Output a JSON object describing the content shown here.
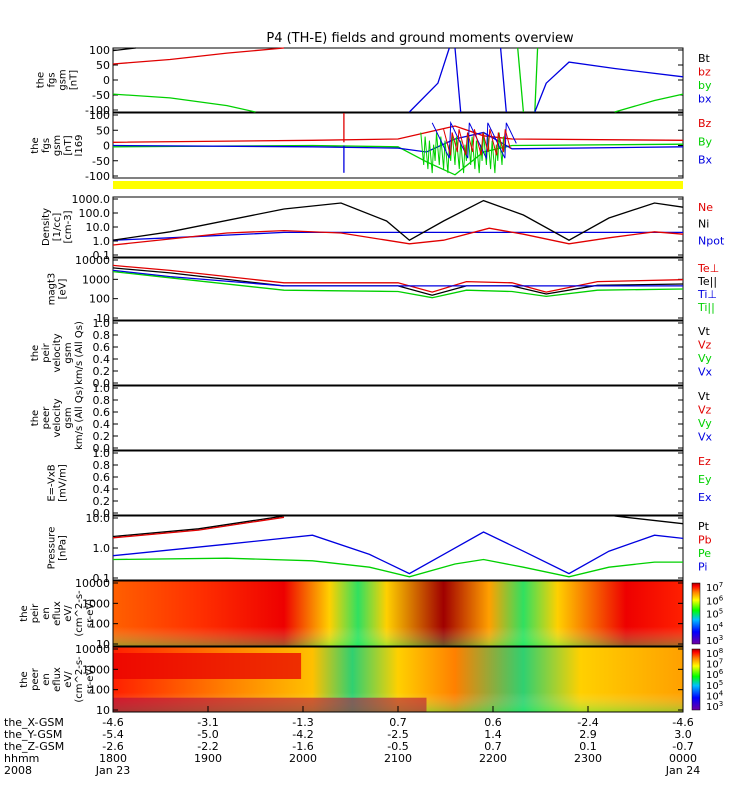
{
  "title": "P4 (TH-E) fields and ground moments overview",
  "colors": {
    "black": "#000000",
    "red": "#e00000",
    "green": "#00d000",
    "blue": "#0000e0",
    "yellow": "#ffff00"
  },
  "panels": [
    {
      "id": "fgs",
      "ylabel": [
        "the",
        "fgs",
        "gsm",
        "[nT]"
      ],
      "ticks": [
        "100",
        "50",
        "0",
        "-50",
        "-100"
      ],
      "legend": [
        {
          "text": "Bt",
          "color": "black"
        },
        {
          "text": "bz",
          "color": "red"
        },
        {
          "text": "by",
          "color": "green"
        },
        {
          "text": "bx",
          "color": "blue"
        }
      ]
    },
    {
      "id": "fgl",
      "ylabel": [
        "the",
        "fgs",
        "gsm",
        "[nT]",
        "l169"
      ],
      "ticks": [
        "100",
        "50",
        "0",
        "-50",
        "-100"
      ],
      "legend": [
        {
          "text": "Bz",
          "color": "red"
        },
        {
          "text": "By",
          "color": "green"
        },
        {
          "text": "Bx",
          "color": "blue"
        }
      ]
    },
    {
      "id": "dens",
      "ylabel": [
        "Density",
        "[1/cc]",
        "[cm-3]"
      ],
      "ticks": [
        "1000.0",
        "100.0",
        "10.0",
        "1.0",
        "0.1"
      ],
      "legend": [
        {
          "text": "Ne",
          "color": "red"
        },
        {
          "text": "Ni",
          "color": "black"
        },
        {
          "text": "Npot",
          "color": "blue"
        }
      ]
    },
    {
      "id": "temp",
      "ylabel": [
        "magt3",
        "[eV]"
      ],
      "ticks": [
        "10000",
        "1000",
        "100",
        "10"
      ],
      "legend": [
        {
          "text": "Te⊥",
          "color": "red"
        },
        {
          "text": "Te||",
          "color": "black"
        },
        {
          "text": "Ti⊥",
          "color": "blue"
        },
        {
          "text": "Ti||",
          "color": "green"
        }
      ]
    },
    {
      "id": "peir",
      "ylabel": [
        "the",
        "peir",
        "velocity",
        "gsm",
        "km/s (All Qs)"
      ],
      "ticks": [
        "1.0",
        "0.8",
        "0.6",
        "0.4",
        "0.2",
        "0.0"
      ],
      "legend": [
        {
          "text": "Vt",
          "color": "black"
        },
        {
          "text": "Vz",
          "color": "red"
        },
        {
          "text": "Vy",
          "color": "green"
        },
        {
          "text": "Vx",
          "color": "blue"
        }
      ]
    },
    {
      "id": "peer",
      "ylabel": [
        "the",
        "peer",
        "velocity",
        "gsm",
        "km/s (All Qs)"
      ],
      "ticks": [
        "1.0",
        "0.8",
        "0.6",
        "0.4",
        "0.2",
        "0.0"
      ],
      "legend": [
        {
          "text": "Vt",
          "color": "black"
        },
        {
          "text": "Vz",
          "color": "red"
        },
        {
          "text": "Vy",
          "color": "green"
        },
        {
          "text": "Vx",
          "color": "blue"
        }
      ]
    },
    {
      "id": "efield",
      "ylabel": [
        "E=-VxB",
        "[mV/m]"
      ],
      "ticks": [
        "1.0",
        "0.8",
        "0.6",
        "0.4",
        "0.2",
        "0.0"
      ],
      "legend": [
        {
          "text": "Ez",
          "color": "red"
        },
        {
          "text": "Ey",
          "color": "green"
        },
        {
          "text": "Ex",
          "color": "blue"
        }
      ]
    },
    {
      "id": "press",
      "ylabel": [
        "Pressure",
        "[nPa]"
      ],
      "ticks": [
        "10.0",
        "1.0",
        "0.1"
      ],
      "legend": [
        {
          "text": "Pt",
          "color": "black"
        },
        {
          "text": "Pb",
          "color": "red"
        },
        {
          "text": "Pe",
          "color": "green"
        },
        {
          "text": "Pi",
          "color": "blue"
        }
      ]
    },
    {
      "id": "ispec",
      "ylabel": [
        "the",
        "peir",
        "en",
        "eflux",
        "eV/",
        "(cm^2-s-",
        "sr-eV)"
      ],
      "ticks": [
        "10000",
        "1000",
        "100",
        "10"
      ],
      "cbar": [
        "10^7",
        "10^6",
        "10^5",
        "10^4",
        "10^3"
      ]
    },
    {
      "id": "espec",
      "ylabel": [
        "the",
        "peer",
        "en",
        "eflux",
        "eV/",
        "(cm^2-s-",
        "sr-eV)"
      ],
      "ticks": [
        "10000",
        "1000",
        "100",
        "10"
      ],
      "cbar": [
        "10^8",
        "10^7",
        "10^6",
        "10^5",
        "10^4",
        "10^3"
      ]
    }
  ],
  "bottom_rows": [
    {
      "label": "the_X-GSM",
      "values": [
        "-4.6",
        "-3.1",
        "-1.3",
        "0.7",
        "0.6",
        "-2.4",
        "-4.6"
      ]
    },
    {
      "label": "the_Y-GSM",
      "values": [
        "-5.4",
        "-5.0",
        "-4.2",
        "-2.5",
        "1.4",
        "2.9",
        "3.0"
      ]
    },
    {
      "label": "the_Z-GSM",
      "values": [
        "-2.6",
        "-2.2",
        "-1.6",
        "-0.5",
        "0.7",
        "0.1",
        "-0.7"
      ]
    },
    {
      "label": "hhmm",
      "values": [
        "1800",
        "1900",
        "2000",
        "2100",
        "2200",
        "2300",
        "0000"
      ]
    },
    {
      "label": "2008",
      "values": [
        "Jan 23",
        "",
        "",
        "",
        "",
        "",
        "Jan 24"
      ]
    }
  ],
  "chart_data": [
    {
      "type": "line",
      "ylabel": "the fgs gsm [nT]",
      "ylim": [
        -100,
        100
      ],
      "x": [
        "1800",
        "1900",
        "2000",
        "2100",
        "2200",
        "2300",
        "0000"
      ],
      "series": [
        {
          "name": "bz",
          "values": [
            45,
            75,
            100,
            100,
            100,
            100,
            100
          ]
        },
        {
          "name": "by",
          "values": [
            -40,
            -90,
            -100,
            -50,
            -100,
            -100,
            -45
          ]
        },
        {
          "name": "bx",
          "values": [
            -100,
            -100,
            -100,
            100,
            -100,
            35,
            -20
          ]
        }
      ]
    },
    {
      "type": "line",
      "ylabel": "the fgs gsm [nT] l169",
      "ylim": [
        -100,
        100
      ],
      "x": [
        "1800",
        "1900",
        "2000",
        "2100",
        "2200",
        "2300",
        "0000"
      ],
      "series": [
        {
          "name": "Bz",
          "values": [
            5,
            8,
            15,
            30,
            40,
            15,
            10
          ]
        },
        {
          "name": "By",
          "values": [
            0,
            2,
            5,
            -30,
            -60,
            5,
            0
          ]
        },
        {
          "name": "Bx",
          "values": [
            -2,
            0,
            0,
            -10,
            20,
            0,
            -5
          ]
        }
      ]
    },
    {
      "type": "line",
      "ylabel": "Density [1/cc] [cm-3]",
      "scale": "log",
      "ylim": [
        0.1,
        1000
      ],
      "x": [
        "1800",
        "1900",
        "2000",
        "2100",
        "2200",
        "2300",
        "0000"
      ],
      "series": [
        {
          "name": "Ni",
          "values": [
            0.9,
            15,
            90,
            0.6,
            160,
            0.6,
            60
          ]
        },
        {
          "name": "Ne",
          "values": [
            0.5,
            3,
            2,
            0.4,
            4,
            0.4,
            1.5
          ]
        },
        {
          "name": "Npot",
          "values": [
            0.5,
            2,
            2,
            2,
            2,
            2,
            2
          ]
        }
      ]
    },
    {
      "type": "line",
      "ylabel": "magt3 [eV]",
      "scale": "log",
      "ylim": [
        10,
        10000
      ],
      "x": [
        "1800",
        "1900",
        "2000",
        "2100",
        "2200",
        "2300",
        "0000"
      ],
      "series": [
        {
          "name": "Te⊥",
          "values": [
            4000,
            600,
            500,
            300,
            450,
            350,
            600
          ]
        },
        {
          "name": "Te||",
          "values": [
            3000,
            500,
            350,
            250,
            300,
            250,
            350
          ]
        },
        {
          "name": "Ti⊥",
          "values": [
            2500,
            400,
            350,
            300,
            300,
            300,
            300
          ]
        },
        {
          "name": "Ti||",
          "values": [
            2000,
            300,
            200,
            150,
            200,
            180,
            200
          ]
        }
      ]
    },
    {
      "type": "line",
      "ylabel": "the peir velocity gsm km/s (All Qs)",
      "ylim": [
        0,
        1
      ],
      "series": []
    },
    {
      "type": "line",
      "ylabel": "the peer velocity gsm km/s (All Qs)",
      "ylim": [
        0,
        1
      ],
      "series": []
    },
    {
      "type": "line",
      "ylabel": "E=-VxB [mV/m]",
      "ylim": [
        0,
        1
      ],
      "series": []
    },
    {
      "type": "line",
      "ylabel": "Pressure [nPa]",
      "scale": "log",
      "ylim": [
        0.02,
        40
      ],
      "x": [
        "1800",
        "1900",
        "2000",
        "2100",
        "2200",
        "2300",
        "0000"
      ],
      "series": [
        {
          "name": "Pt",
          "values": [
            4,
            12,
            40,
            40,
            40,
            40,
            20
          ]
        },
        {
          "name": "Pb",
          "values": [
            4,
            12,
            40,
            40,
            40,
            40,
            20
          ]
        },
        {
          "name": "Pi",
          "values": [
            0.8,
            2,
            2,
            0.03,
            5,
            0.03,
            2
          ]
        },
        {
          "name": "Pe",
          "values": [
            0.2,
            0.3,
            0.3,
            0.03,
            0.6,
            0.03,
            0.3
          ]
        }
      ]
    },
    {
      "type": "heatmap",
      "ylabel": "the peir en eflux eV/(cm^2-s-sr-eV)",
      "scale": "log",
      "ylim": [
        10,
        20000
      ],
      "colorbar": [
        "10^3",
        "10^7"
      ]
    },
    {
      "type": "heatmap",
      "ylabel": "the peer en eflux eV/(cm^2-s-sr-eV)",
      "scale": "log",
      "ylim": [
        10,
        20000
      ],
      "colorbar": [
        "10^3",
        "10^8"
      ]
    }
  ]
}
